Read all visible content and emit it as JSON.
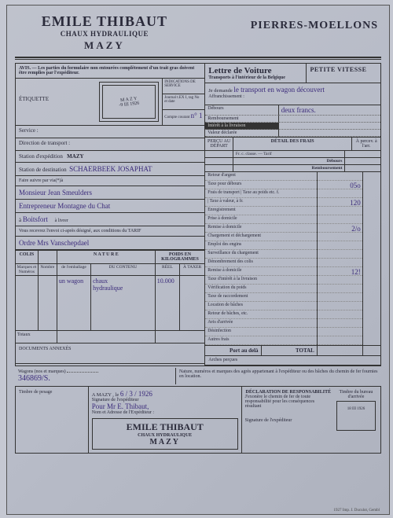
{
  "header": {
    "name": "EMILE THIBAUT",
    "subtitle": "CHAUX HYDRAULIQUE",
    "place": "MAZY",
    "right": "PIERRES-MOELLONS"
  },
  "avis": "AVIS. — Les parties du formulaire non entourées complètement d'un trait gras doivent être remplies par l'expéditeur.",
  "etiquette_label": "ÉTIQUETTE",
  "stamp": {
    "line1": "M A Z Y",
    "line2": "-9 III 1926"
  },
  "indications": {
    "title": "INDICATIONS DE SERVICE",
    "c1": "Journal t.EX I, tag No et date",
    "c2": "Compte courant",
    "c2v": "n° 1",
    "c3": "Gér.sul DU 1940",
    "c4": "No d'ordre de petit d'arrivée"
  },
  "service_label": "Service :",
  "direction_label": "Direction de transport :",
  "station_exp_label": "Station d'expédition",
  "station_exp_val": "MAZY",
  "station_dest_label": "Station de destination",
  "station_dest_val": "SCHAERBEEK JOSAPHAT",
  "faire_suivre": "Faire suivre par via(*)à",
  "dest_line1": "Monsieur Jean Smeulders",
  "dest_line2": "Entrepreneur Montagne du Chat",
  "dest_line3_a": "à",
  "dest_line3_b": "Boitsfort",
  "dest_line3_c": "à livrer",
  "tarif_note": "Vous recevrez l'envoi ci-après désigné, aux conditions du TARIF",
  "ordre": "Ordre Mrs Vanschepdael",
  "colis": {
    "head_colis": "COLIS",
    "head_nature": "N A T U R E",
    "head_poids": "POIDS EN KILOGRAMMES",
    "sub_marques": "Marques et Numéros",
    "sub_nombre": "Nombre",
    "sub_emb": "de l'emballage",
    "sub_contenu": "DU CONTENU",
    "sub_reel": "RÉEL",
    "sub_taxer": "À TAXER",
    "row_emb": "un wagon",
    "row_cont1": "chaux",
    "row_cont2": "hydraulique",
    "row_poids": "10.000",
    "totaux": "Totaux"
  },
  "documents_label": "DOCUMENTS ANNEXÉS",
  "lettre": {
    "title": "Lettre de Voiture",
    "sub": "Transports à l'intérieur de la Belgique",
    "pv": "PETITE VITESSE",
    "demande_label": "Je demande",
    "demande_val": "le transport en wagon découvert",
    "affr": "Affranchissement :",
    "rows": {
      "debours": "Débours",
      "debours_val": "deux francs.",
      "remb": "Remboursement",
      "interet": "Intérêt à la livraison",
      "valeur": "Valeur déclarée"
    }
  },
  "detail": {
    "percu": "PERÇU AU DÉPART",
    "title": "DÉTAIL DES FRAIS",
    "apercu": "À percev. à l'arr.",
    "classe": "Fr.  c.       classe. — Tarif",
    "debours2": "Débours",
    "remb2": "Remboursement",
    "items": [
      "Retour d'argent",
      "Taxe pour débours",
      "Frais de transport | Taxe au poids etc. f.",
      "                    | Taxe à valeur, à fr.",
      "Enregistrement",
      "Prise à domicile",
      "Remise à domicile",
      "Chargement et déchargement",
      "Emploi des engins",
      "Surveillance du chargement",
      "Dénombrement des colis",
      "Remise à domicile",
      "Taxe d'intérêt à la livraison",
      "Vérification du poids",
      "Taxe de raccordement",
      "Location de bâches",
      "Retour de bâches, etc.",
      "Avis d'arrivée",
      "Désinfection",
      "Autres frais"
    ],
    "vals": [
      "",
      "05o",
      "",
      "120",
      "",
      "",
      "2/o",
      "",
      "",
      "",
      "",
      "12!",
      "",
      "",
      "",
      "",
      "",
      "",
      "",
      ""
    ],
    "port": "Port au delà",
    "total": "TOTAL",
    "arches": "Arches perçues"
  },
  "wagons": {
    "left_label": "Wagons (nos et marques)",
    "left_val": "346869/S.",
    "right": "Nature, numéros et marques des agrès appartenant à l'expéditeur ou des bâches du chemin de fer fournies en location."
  },
  "bottom": {
    "timbre_pesage": "Timbre de pesage",
    "amazy": "A MAZY , le",
    "date": "6 / 3 /    1926",
    "sig_exp": "Signature de l'expéditeur",
    "pour": "Pour Mr E. Thibaut,",
    "nom_adr": "Nom et Adresse de l'Expéditeur :",
    "decl_title": "DÉCLARATION DE RESPONSABILITÉ",
    "decl_body": "J'exonère le chemin de fer de toute responsabilité pour les conséquences résultant",
    "sig_exp2": "Signature de l'expéditeur",
    "timbre_arr": "Timbre du bureau d'arrivée",
    "arr_stamp": "18 III 1926"
  },
  "footer": "1927 Imp. J. Duculot, Gembl"
}
